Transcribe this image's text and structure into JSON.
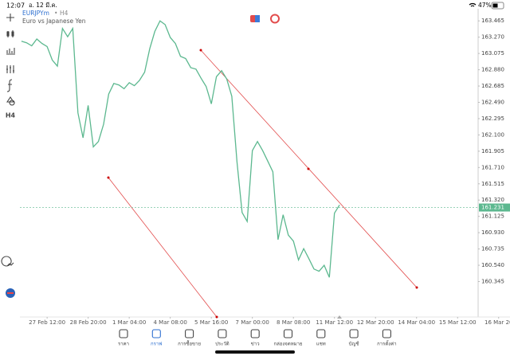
{
  "status_bar": {
    "time": "12:07",
    "date": "อ. 12 มี.ค.",
    "battery": "47%"
  },
  "toolbar": {
    "timeframe": "H4"
  },
  "chart_data": {
    "type": "line",
    "title": "EURJPYm",
    "timeframe": "H4",
    "subtitle": "Euro vs Japanese Yen",
    "color": "#5cb88f",
    "x": [
      0,
      1,
      2,
      3,
      4,
      5,
      6,
      7,
      8,
      9,
      10,
      11,
      12,
      13,
      14,
      15,
      16,
      17,
      18,
      19,
      20,
      21,
      22,
      23,
      24,
      25,
      26,
      27,
      28,
      29,
      30,
      31,
      32,
      33,
      34,
      35,
      36,
      37,
      38,
      39,
      40,
      41,
      42,
      43,
      44,
      45,
      46,
      47,
      48,
      49,
      50,
      51,
      52,
      53,
      54,
      55,
      56,
      57,
      58,
      59,
      60,
      61,
      62
    ],
    "values": [
      163.221,
      163.203,
      163.167,
      163.248,
      163.194,
      163.158,
      162.996,
      162.923,
      163.375,
      163.275,
      163.375,
      162.364,
      162.066,
      162.454,
      161.957,
      162.021,
      162.228,
      162.589,
      162.716,
      162.698,
      162.653,
      162.725,
      162.689,
      162.752,
      162.851,
      163.131,
      163.339,
      163.465,
      163.42,
      163.266,
      163.194,
      163.041,
      163.014,
      162.905,
      162.887,
      162.779,
      162.68,
      162.472,
      162.797,
      162.869,
      162.77,
      162.562,
      161.777,
      161.172,
      161.064,
      161.912,
      162.021,
      161.912,
      161.786,
      161.659,
      160.847,
      161.145,
      160.901,
      160.829,
      160.603,
      160.739,
      160.621,
      160.495,
      160.468,
      160.54,
      160.396,
      161.163,
      161.262
    ],
    "current_price": 161.231,
    "current_color": "#5cb88f",
    "xlim": [
      -0.3,
      89
    ],
    "xticks": [
      {
        "value": 5,
        "label": "27 Feb 12:00"
      },
      {
        "value": 13,
        "label": "28 Feb 20:00"
      },
      {
        "value": 21,
        "label": "1 Mar 04:00"
      },
      {
        "value": 29,
        "label": "4 Mar 08:00"
      },
      {
        "value": 37,
        "label": "5 Mar 16:00"
      },
      {
        "value": 45,
        "label": "7 Mar 00:00"
      },
      {
        "value": 53,
        "label": "8 Mar 08:00"
      },
      {
        "value": 61,
        "label": "11 Mar 12:00"
      },
      {
        "value": 69,
        "label": "12 Mar 20:00"
      },
      {
        "value": 77,
        "label": "14 Mar 04:00"
      },
      {
        "value": 85,
        "label": "15 Mar 12:00"
      },
      {
        "value": 93,
        "label": "16 Mar 20"
      }
    ],
    "ylim": [
      159.94,
      163.61
    ],
    "yticks": [
      163.465,
      {
        "value": 163.27,
        "label": "163.270"
      },
      163.075,
      {
        "value": 162.88,
        "label": "162.880"
      },
      162.685,
      {
        "value": 162.49,
        "label": "162.490"
      },
      162.295,
      {
        "value": 162.1,
        "label": "162.100"
      },
      161.905,
      {
        "value": 161.71,
        "label": "161.710"
      },
      161.515,
      {
        "value": 161.32,
        "label": "161.320"
      },
      161.125,
      {
        "value": 160.93,
        "label": "160.930"
      },
      160.735,
      {
        "value": 160.54,
        "label": "160.540"
      },
      160.345
    ],
    "grid": false
  },
  "nav": {
    "items": [
      "ราคา",
      "กราฟ",
      "การซื้อขาย",
      "ประวัติ",
      "ข่าว",
      "กล่องจดหมาย",
      "แชท",
      "บัญชี",
      "การตั้งค่า"
    ],
    "active": 1
  }
}
